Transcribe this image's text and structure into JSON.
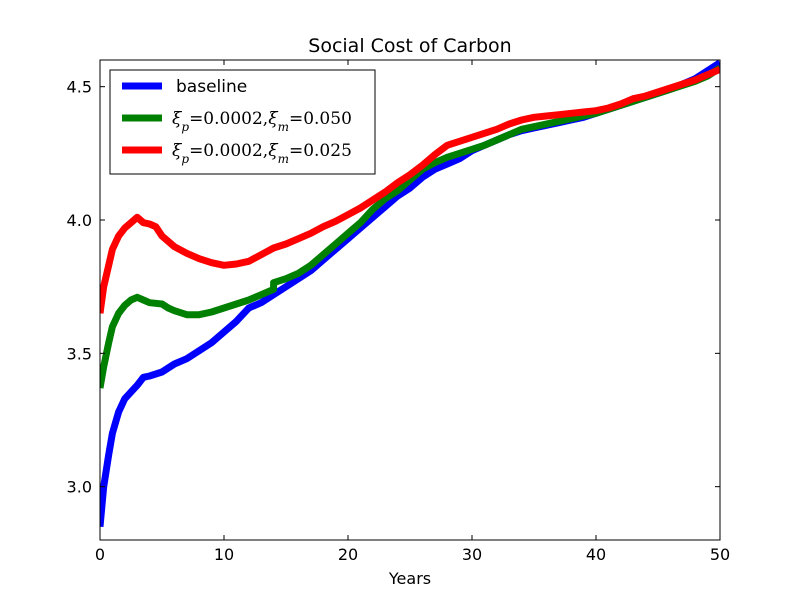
{
  "chart_data": {
    "type": "line",
    "title": "Social Cost of Carbon",
    "xlabel": "Years",
    "ylabel": "",
    "xlim": [
      0,
      50
    ],
    "ylim": [
      2.8,
      4.6
    ],
    "x_ticks": [
      "0",
      "10",
      "20",
      "30",
      "40",
      "50"
    ],
    "y_ticks": [
      "3.0",
      "3.5",
      "4.0",
      "4.5"
    ],
    "x_tick_values": [
      0,
      10,
      20,
      30,
      40,
      50
    ],
    "y_tick_values": [
      3.0,
      3.5,
      4.0,
      4.5
    ],
    "legend_position": "top-left",
    "grid": false,
    "series": [
      {
        "name": "baseline",
        "color": "#0000ff",
        "points": [
          [
            0,
            2.85
          ],
          [
            0.3,
            3.0
          ],
          [
            0.7,
            3.12
          ],
          [
            1,
            3.2
          ],
          [
            1.5,
            3.28
          ],
          [
            2,
            3.33
          ],
          [
            3,
            3.38
          ],
          [
            3.5,
            3.41
          ],
          [
            4,
            3.415
          ],
          [
            5,
            3.43
          ],
          [
            6,
            3.46
          ],
          [
            7,
            3.48
          ],
          [
            8,
            3.51
          ],
          [
            9,
            3.54
          ],
          [
            10,
            3.58
          ],
          [
            11,
            3.62
          ],
          [
            12,
            3.67
          ],
          [
            13,
            3.69
          ],
          [
            14,
            3.72
          ],
          [
            15,
            3.75
          ],
          [
            16,
            3.78
          ],
          [
            17,
            3.81
          ],
          [
            18,
            3.85
          ],
          [
            19,
            3.89
          ],
          [
            20,
            3.93
          ],
          [
            21,
            3.97
          ],
          [
            22,
            4.01
          ],
          [
            23,
            4.05
          ],
          [
            24,
            4.09
          ],
          [
            25,
            4.12
          ],
          [
            26,
            4.16
          ],
          [
            27,
            4.19
          ],
          [
            28,
            4.21
          ],
          [
            29,
            4.23
          ],
          [
            30,
            4.26
          ],
          [
            31,
            4.28
          ],
          [
            32,
            4.3
          ],
          [
            33,
            4.32
          ],
          [
            34,
            4.335
          ],
          [
            35,
            4.345
          ],
          [
            36,
            4.355
          ],
          [
            37,
            4.365
          ],
          [
            38,
            4.375
          ],
          [
            39,
            4.385
          ],
          [
            40,
            4.4
          ],
          [
            41,
            4.415
          ],
          [
            42,
            4.43
          ],
          [
            43,
            4.445
          ],
          [
            44,
            4.46
          ],
          [
            45,
            4.475
          ],
          [
            46,
            4.49
          ],
          [
            47,
            4.51
          ],
          [
            48,
            4.53
          ],
          [
            49,
            4.56
          ],
          [
            50,
            4.59
          ]
        ]
      },
      {
        "name": "ξp=0.0002,ξm=0.050",
        "label_parts": [
          {
            "sym": "ξ",
            "sub": "p",
            "eq": "=0.0002,"
          },
          {
            "sym": "ξ",
            "sub": "m",
            "eq": "=0.050"
          }
        ],
        "color": "#008000",
        "points": [
          [
            0,
            3.37
          ],
          [
            0.3,
            3.45
          ],
          [
            0.7,
            3.54
          ],
          [
            1,
            3.6
          ],
          [
            1.5,
            3.65
          ],
          [
            2,
            3.68
          ],
          [
            2.5,
            3.7
          ],
          [
            3,
            3.71
          ],
          [
            3.5,
            3.7
          ],
          [
            4,
            3.69
          ],
          [
            5,
            3.685
          ],
          [
            5.5,
            3.67
          ],
          [
            6,
            3.66
          ],
          [
            7,
            3.645
          ],
          [
            8,
            3.645
          ],
          [
            9,
            3.655
          ],
          [
            10,
            3.67
          ],
          [
            11,
            3.685
          ],
          [
            12,
            3.7
          ],
          [
            13,
            3.72
          ],
          [
            14,
            3.74
          ],
          [
            14,
            3.765
          ],
          [
            15,
            3.78
          ],
          [
            16,
            3.8
          ],
          [
            17,
            3.83
          ],
          [
            18,
            3.87
          ],
          [
            19,
            3.91
          ],
          [
            20,
            3.95
          ],
          [
            21,
            3.99
          ],
          [
            22,
            4.04
          ],
          [
            23,
            4.08
          ],
          [
            24,
            4.11
          ],
          [
            25,
            4.15
          ],
          [
            26,
            4.19
          ],
          [
            27,
            4.215
          ],
          [
            28,
            4.235
          ],
          [
            29,
            4.25
          ],
          [
            30,
            4.265
          ],
          [
            31,
            4.28
          ],
          [
            32,
            4.3
          ],
          [
            33,
            4.32
          ],
          [
            34,
            4.34
          ],
          [
            35,
            4.35
          ],
          [
            36,
            4.36
          ],
          [
            37,
            4.37
          ],
          [
            38,
            4.38
          ],
          [
            39,
            4.39
          ],
          [
            40,
            4.4
          ],
          [
            41,
            4.415
          ],
          [
            42,
            4.43
          ],
          [
            43,
            4.445
          ],
          [
            44,
            4.46
          ],
          [
            45,
            4.475
          ],
          [
            46,
            4.49
          ],
          [
            47,
            4.505
          ],
          [
            48,
            4.52
          ],
          [
            49,
            4.54
          ],
          [
            50,
            4.57
          ]
        ]
      },
      {
        "name": "ξp=0.0002,ξm=0.025",
        "label_parts": [
          {
            "sym": "ξ",
            "sub": "p",
            "eq": "=0.0002,"
          },
          {
            "sym": "ξ",
            "sub": "m",
            "eq": "=0.025"
          }
        ],
        "color": "#ff0000",
        "points": [
          [
            0,
            3.65
          ],
          [
            0.3,
            3.75
          ],
          [
            0.7,
            3.83
          ],
          [
            1,
            3.89
          ],
          [
            1.5,
            3.94
          ],
          [
            2,
            3.97
          ],
          [
            2.5,
            3.99
          ],
          [
            3,
            4.01
          ],
          [
            3.5,
            3.99
          ],
          [
            4,
            3.985
          ],
          [
            4.5,
            3.975
          ],
          [
            5,
            3.94
          ],
          [
            6,
            3.9
          ],
          [
            7,
            3.875
          ],
          [
            8,
            3.855
          ],
          [
            9,
            3.84
          ],
          [
            10,
            3.83
          ],
          [
            11,
            3.835
          ],
          [
            12,
            3.845
          ],
          [
            13,
            3.87
          ],
          [
            14,
            3.895
          ],
          [
            15,
            3.91
          ],
          [
            16,
            3.93
          ],
          [
            17,
            3.95
          ],
          [
            18,
            3.975
          ],
          [
            19,
            3.995
          ],
          [
            20,
            4.02
          ],
          [
            21,
            4.045
          ],
          [
            22,
            4.075
          ],
          [
            23,
            4.105
          ],
          [
            24,
            4.14
          ],
          [
            25,
            4.17
          ],
          [
            26,
            4.205
          ],
          [
            27,
            4.245
          ],
          [
            28,
            4.28
          ],
          [
            29,
            4.295
          ],
          [
            30,
            4.31
          ],
          [
            31,
            4.325
          ],
          [
            32,
            4.34
          ],
          [
            33,
            4.36
          ],
          [
            34,
            4.375
          ],
          [
            35,
            4.385
          ],
          [
            36,
            4.39
          ],
          [
            37,
            4.395
          ],
          [
            38,
            4.4
          ],
          [
            39,
            4.405
          ],
          [
            40,
            4.41
          ],
          [
            41,
            4.42
          ],
          [
            42,
            4.435
          ],
          [
            43,
            4.455
          ],
          [
            44,
            4.465
          ],
          [
            45,
            4.48
          ],
          [
            46,
            4.495
          ],
          [
            47,
            4.51
          ],
          [
            48,
            4.525
          ],
          [
            49,
            4.545
          ],
          [
            50,
            4.565
          ]
        ]
      }
    ]
  }
}
